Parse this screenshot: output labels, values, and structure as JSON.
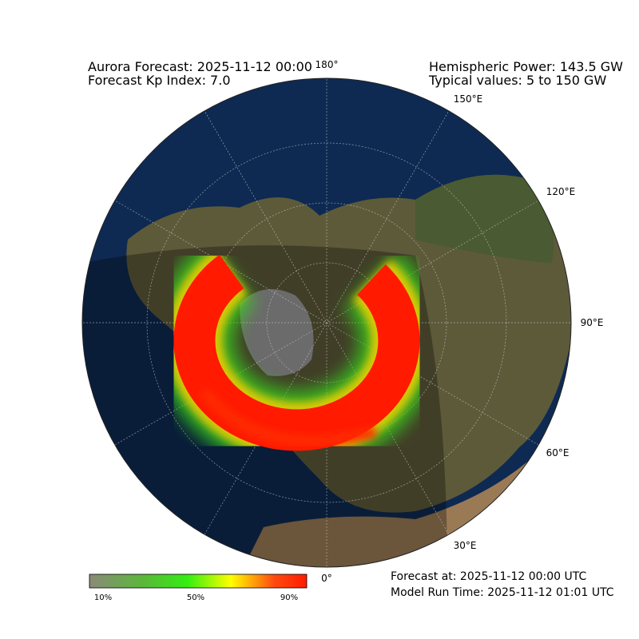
{
  "header": {
    "title": "Aurora Forecast: 2025-11-12 00:00",
    "kp": "Forecast Kp Index: 7.0",
    "power": "Hemispheric Power: 143.5 GW",
    "typical": "Typical values: 5 to 150 GW"
  },
  "longitude_labels": [
    "180°",
    "150°E",
    "120°E",
    "90°E",
    "60°E",
    "30°E",
    "0°"
  ],
  "colorbar": {
    "labels": [
      "10%",
      "50%",
      "90%"
    ]
  },
  "footer": {
    "forecast_at": "Forecast at: 2025-11-12 00:00 UTC",
    "model_run": "Model Run Time: 2025-11-12 01:01 UTC"
  }
}
